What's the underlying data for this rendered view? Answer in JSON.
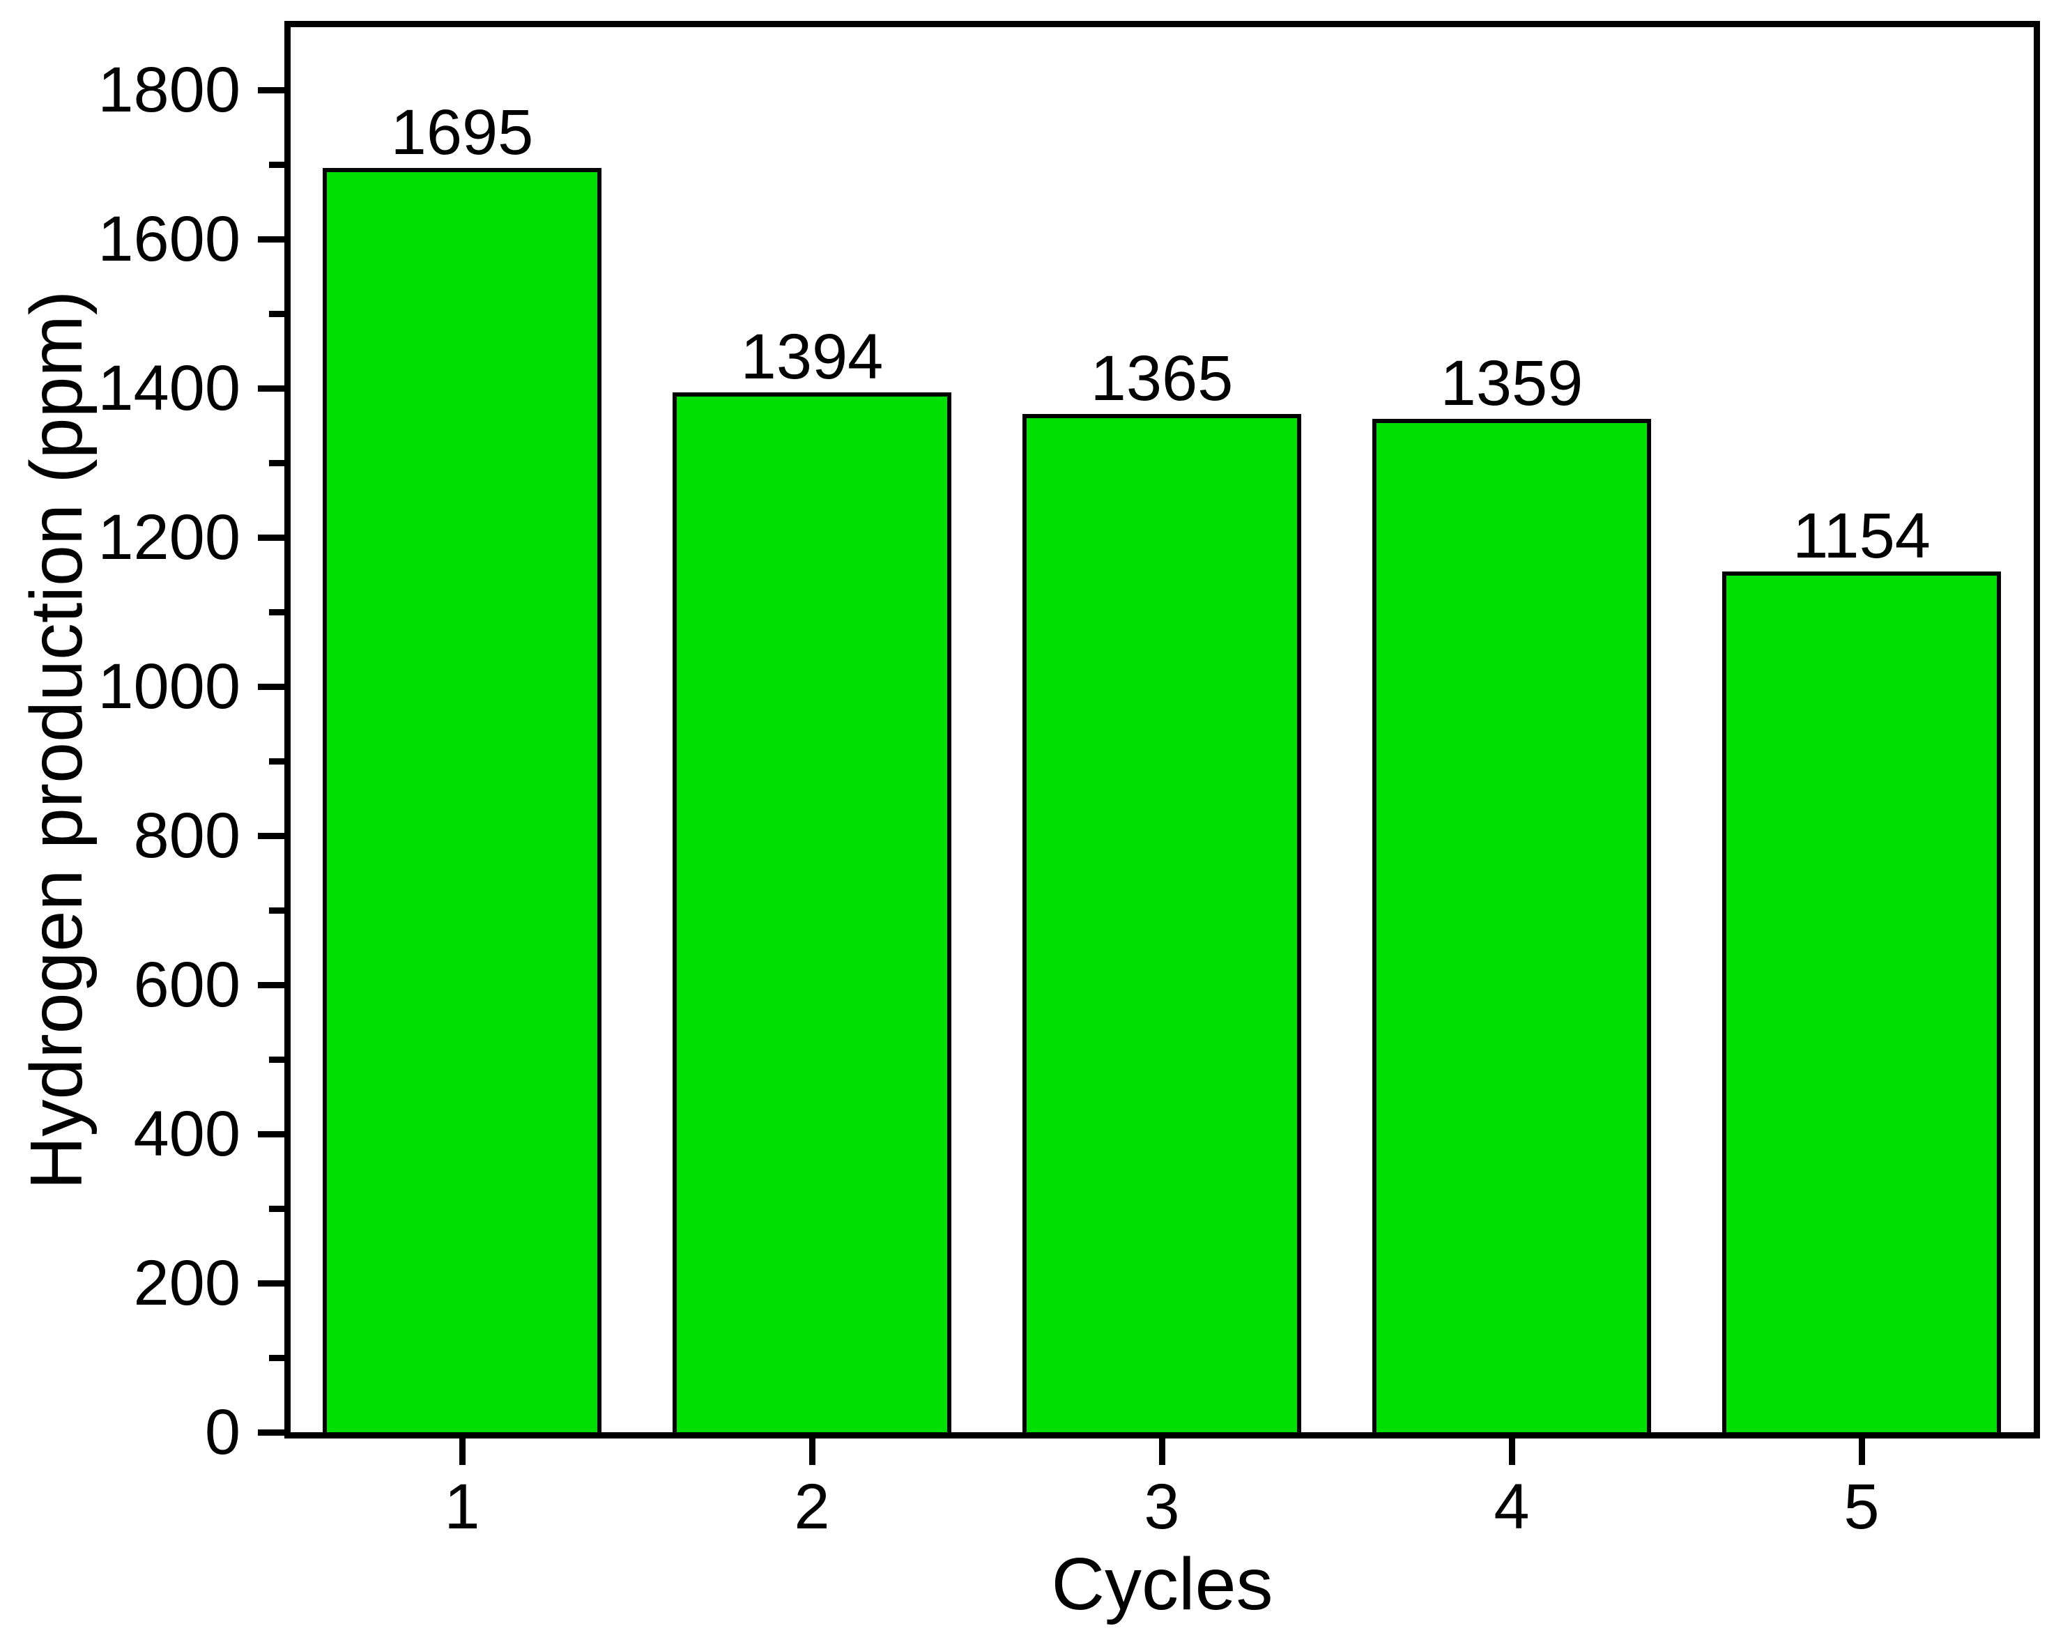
{
  "chart_data": {
    "type": "bar",
    "title": "",
    "xlabel": "Cycles",
    "ylabel": "Hydrogen production (ppm)",
    "categories": [
      "1",
      "2",
      "3",
      "4",
      "5"
    ],
    "values": [
      1695,
      1394,
      1365,
      1359,
      1154
    ],
    "bar_labels": [
      "1695",
      "1394",
      "1365",
      "1359",
      "1154"
    ],
    "ylim": [
      0,
      1884
    ],
    "ytick_major_step": 200,
    "ytick_minor_step": 100,
    "ytick_max": 1800,
    "grid": false,
    "legend_position": "none",
    "bar_fill_color": "#00E000",
    "bar_border_color": "#000000",
    "axis_color": "#000000",
    "text_color": "#000000",
    "background_color": "#ffffff"
  }
}
